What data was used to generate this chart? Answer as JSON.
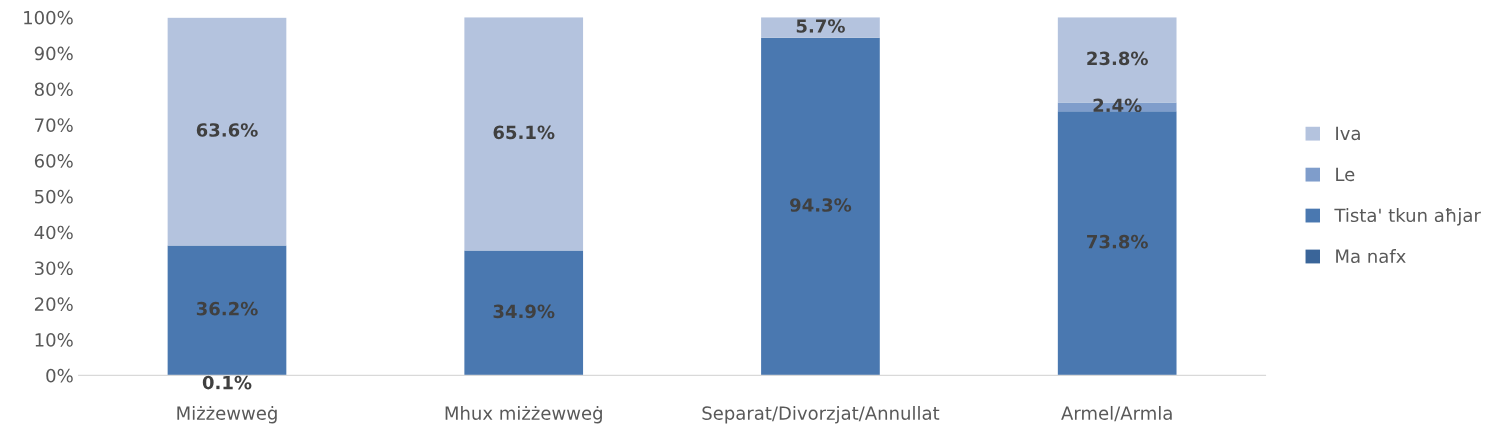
{
  "chart_data": {
    "type": "bar",
    "stacked": true,
    "categories": [
      "Miżżewweġ",
      "Mhux miżżewweġ",
      "Separat/Divorzjat/Annullat",
      "Armel/Armla"
    ],
    "series": [
      {
        "name": "Ma nafx",
        "color": "#3a6599",
        "values": [
          0.1,
          null,
          null,
          null
        ],
        "value_labels": [
          "0.1%",
          null,
          null,
          null
        ]
      },
      {
        "name": "Tista' tkun aħjar",
        "color": "#4a78b0",
        "values": [
          36.2,
          34.9,
          94.3,
          73.8
        ],
        "value_labels": [
          "36.2%",
          "34.9%",
          "94.3%",
          "73.8%"
        ]
      },
      {
        "name": "Le",
        "color": "#7f9dcb",
        "values": [
          null,
          null,
          null,
          2.4
        ],
        "value_labels": [
          null,
          null,
          null,
          "2.4%"
        ]
      },
      {
        "name": "Iva",
        "color": "#b4c3de",
        "values": [
          63.6,
          65.1,
          5.7,
          23.8
        ],
        "value_labels": [
          "63.6%",
          "65.1%",
          "5.7%",
          "23.8%"
        ]
      }
    ],
    "ylim": [
      0,
      100
    ],
    "yticks": [
      {
        "value": 0,
        "label": "0%"
      },
      {
        "value": 10,
        "label": "10%"
      },
      {
        "value": 20,
        "label": "20%"
      },
      {
        "value": 30,
        "label": "30%"
      },
      {
        "value": 40,
        "label": "40%"
      },
      {
        "value": 50,
        "label": "50%"
      },
      {
        "value": 60,
        "label": "60%"
      },
      {
        "value": 70,
        "label": "70%"
      },
      {
        "value": 80,
        "label": "80%"
      },
      {
        "value": 90,
        "label": "90%"
      },
      {
        "value": 100,
        "label": "100%"
      }
    ],
    "grid": false,
    "legend": "right"
  }
}
